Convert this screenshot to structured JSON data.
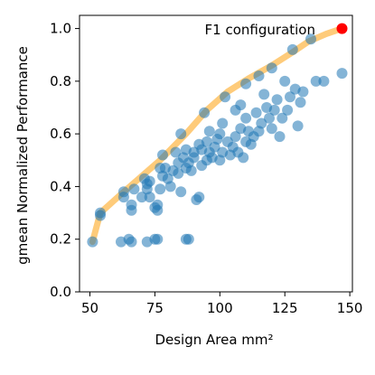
{
  "chart_data": {
    "type": "scatter",
    "xlabel": "Design Area mm²",
    "ylabel": "gmean Normalized Performance",
    "xlim": [
      46,
      151
    ],
    "ylim": [
      0,
      1.05
    ],
    "xticks": [
      "50",
      "75",
      "100",
      "125",
      "150"
    ],
    "xtick_values": [
      50,
      75,
      100,
      125,
      150
    ],
    "yticks": [
      "0.0",
      "0.2",
      "0.4",
      "0.6",
      "0.8",
      "1.0"
    ],
    "ytick_values": [
      0.0,
      0.2,
      0.4,
      0.6,
      0.8,
      1.0
    ],
    "annotation": "F1 configuration",
    "colors": {
      "points": "#1f77b4",
      "frontier": "#fdb94d",
      "highlight": "#ff0000"
    },
    "frontier": {
      "x": [
        51,
        54,
        63,
        77,
        87,
        95,
        103,
        111,
        120,
        128,
        134,
        141,
        147
      ],
      "y": [
        0.19,
        0.3,
        0.38,
        0.5,
        0.6,
        0.69,
        0.76,
        0.81,
        0.86,
        0.91,
        0.95,
        0.98,
        1.0
      ]
    },
    "highlight_point": {
      "x": 147,
      "y": 1.0
    },
    "points": {
      "x": [
        51,
        54,
        54,
        63,
        63,
        66,
        66,
        67,
        70,
        71,
        72,
        72,
        73,
        73,
        75,
        76,
        76,
        77,
        77,
        78,
        78,
        79,
        80,
        81,
        82,
        83,
        84,
        84,
        85,
        85,
        86,
        87,
        87,
        88,
        89,
        90,
        90,
        91,
        92,
        92,
        93,
        93,
        94,
        95,
        95,
        96,
        96,
        97,
        98,
        99,
        100,
        100,
        101,
        101,
        102,
        103,
        104,
        105,
        106,
        106,
        107,
        108,
        108,
        109,
        110,
        110,
        110,
        111,
        112,
        113,
        114,
        115,
        115,
        116,
        117,
        118,
        119,
        120,
        120,
        121,
        122,
        123,
        124,
        125,
        126,
        127,
        128,
        129,
        130,
        131,
        132,
        135,
        137,
        140,
        147,
        62,
        65,
        66,
        72,
        75,
        76,
        87,
        88
      ],
      "y": [
        0.19,
        0.29,
        0.3,
        0.36,
        0.38,
        0.31,
        0.33,
        0.39,
        0.36,
        0.43,
        0.39,
        0.41,
        0.36,
        0.42,
        0.32,
        0.31,
        0.33,
        0.39,
        0.47,
        0.44,
        0.52,
        0.47,
        0.43,
        0.4,
        0.46,
        0.53,
        0.45,
        0.49,
        0.38,
        0.6,
        0.51,
        0.47,
        0.54,
        0.49,
        0.46,
        0.51,
        0.53,
        0.35,
        0.36,
        0.56,
        0.48,
        0.54,
        0.68,
        0.5,
        0.57,
        0.53,
        0.61,
        0.51,
        0.55,
        0.58,
        0.5,
        0.6,
        0.53,
        0.64,
        0.74,
        0.57,
        0.52,
        0.55,
        0.59,
        0.69,
        0.53,
        0.62,
        0.71,
        0.51,
        0.57,
        0.66,
        0.79,
        0.61,
        0.56,
        0.59,
        0.68,
        0.61,
        0.82,
        0.64,
        0.75,
        0.7,
        0.66,
        0.85,
        0.62,
        0.69,
        0.73,
        0.59,
        0.66,
        0.8,
        0.69,
        0.74,
        0.92,
        0.77,
        0.63,
        0.72,
        0.76,
        0.96,
        0.8,
        0.8,
        0.83,
        0.19,
        0.2,
        0.19,
        0.19,
        0.2,
        0.2,
        0.2,
        0.2
      ]
    }
  }
}
